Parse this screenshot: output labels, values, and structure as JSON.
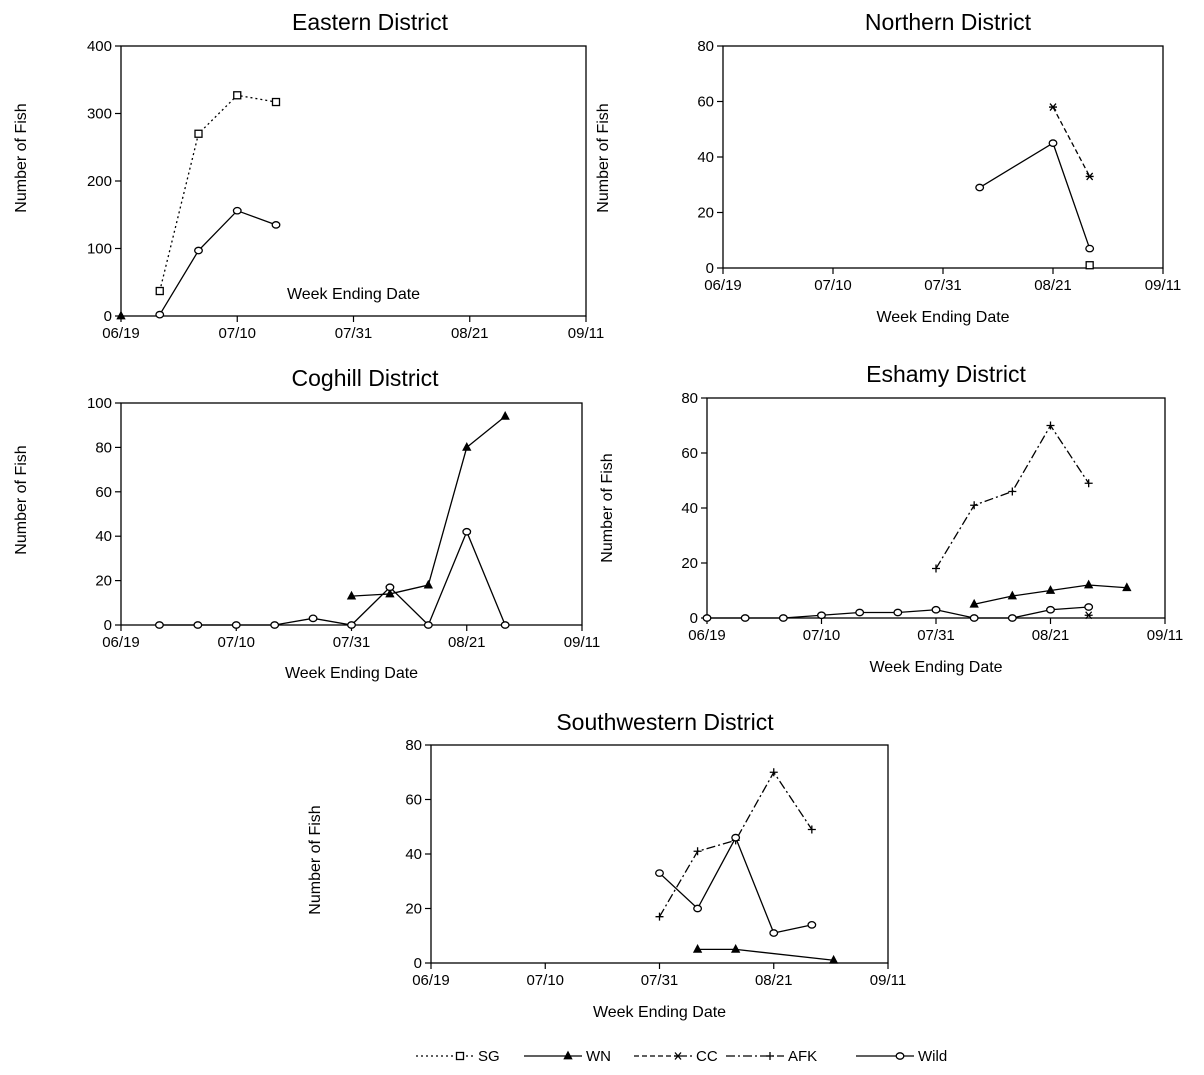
{
  "chart_data": [
    {
      "type": "line",
      "title": "Eastern District",
      "xlabel": "Week Ending Date",
      "ylabel": "Number of Fish",
      "ylim": [
        0,
        400
      ],
      "yticks": [
        "0",
        "100",
        "200",
        "300",
        "400"
      ],
      "xticks": [
        "06/19",
        "07/10",
        "07/31",
        "08/21",
        "09/11"
      ],
      "series": [
        {
          "name": "SG",
          "points": [
            [
              "06/26",
              37
            ],
            [
              "07/03",
              270
            ],
            [
              "07/10",
              327
            ],
            [
              "07/17",
              317
            ]
          ]
        },
        {
          "name": "WN",
          "points": [
            [
              "06/19",
              0
            ]
          ]
        },
        {
          "name": "Wild",
          "points": [
            [
              "06/26",
              2
            ],
            [
              "07/03",
              97
            ],
            [
              "07/10",
              156
            ],
            [
              "07/17",
              135
            ]
          ]
        }
      ]
    },
    {
      "type": "line",
      "title": "Northern District",
      "xlabel": "Week Ending Date",
      "ylabel": "Number of Fish",
      "ylim": [
        0,
        80
      ],
      "yticks": [
        "0",
        "20",
        "40",
        "60",
        "80"
      ],
      "xticks": [
        "06/19",
        "07/10",
        "07/31",
        "08/21",
        "09/11"
      ],
      "series": [
        {
          "name": "SG",
          "points": [
            [
              "08/28",
              1
            ]
          ]
        },
        {
          "name": "CC",
          "points": [
            [
              "08/21",
              58
            ],
            [
              "08/28",
              33
            ]
          ]
        },
        {
          "name": "Wild",
          "points": [
            [
              "08/07",
              29
            ],
            [
              "08/21",
              45
            ],
            [
              "08/28",
              7
            ]
          ]
        }
      ]
    },
    {
      "type": "line",
      "title": "Coghill District",
      "xlabel": "Week Ending Date",
      "ylabel": "Number of Fish",
      "ylim": [
        0,
        100
      ],
      "yticks": [
        "0",
        "20",
        "40",
        "60",
        "80",
        "100"
      ],
      "xticks": [
        "06/19",
        "07/10",
        "07/31",
        "08/21",
        "09/11"
      ],
      "series": [
        {
          "name": "WN",
          "points": [
            [
              "07/31",
              13
            ],
            [
              "08/07",
              14
            ],
            [
              "08/14",
              18
            ],
            [
              "08/21",
              80
            ],
            [
              "08/28",
              94
            ]
          ]
        },
        {
          "name": "Wild",
          "points": [
            [
              "06/26",
              0
            ],
            [
              "07/03",
              0
            ],
            [
              "07/10",
              0
            ],
            [
              "07/17",
              0
            ],
            [
              "07/24",
              3
            ],
            [
              "07/31",
              0
            ],
            [
              "08/07",
              17
            ],
            [
              "08/14",
              0
            ],
            [
              "08/21",
              42
            ],
            [
              "08/28",
              0
            ]
          ]
        }
      ]
    },
    {
      "type": "line",
      "title": "Eshamy District",
      "xlabel": "Week Ending Date",
      "ylabel": "Number of Fish",
      "ylim": [
        0,
        80
      ],
      "yticks": [
        "0",
        "20",
        "40",
        "60",
        "80"
      ],
      "xticks": [
        "06/19",
        "07/10",
        "07/31",
        "08/21",
        "09/11"
      ],
      "series": [
        {
          "name": "WN",
          "points": [
            [
              "08/07",
              5
            ],
            [
              "08/14",
              8
            ],
            [
              "08/21",
              10
            ],
            [
              "08/28",
              12
            ],
            [
              "09/04",
              11
            ]
          ]
        },
        {
          "name": "CC",
          "points": [
            [
              "08/28",
              1
            ]
          ]
        },
        {
          "name": "AFK",
          "points": [
            [
              "07/31",
              18
            ],
            [
              "08/07",
              41
            ],
            [
              "08/14",
              46
            ],
            [
              "08/21",
              70
            ],
            [
              "08/28",
              49
            ]
          ]
        },
        {
          "name": "Wild",
          "points": [
            [
              "06/19",
              0
            ],
            [
              "06/26",
              0
            ],
            [
              "07/03",
              0
            ],
            [
              "07/10",
              1
            ],
            [
              "07/17",
              2
            ],
            [
              "07/24",
              2
            ],
            [
              "07/31",
              3
            ],
            [
              "08/07",
              0
            ],
            [
              "08/14",
              0
            ],
            [
              "08/21",
              3
            ],
            [
              "08/28",
              4
            ]
          ]
        }
      ]
    },
    {
      "type": "line",
      "title": "Southwestern District",
      "xlabel": "Week Ending Date",
      "ylabel": "Number of Fish",
      "ylim": [
        0,
        80
      ],
      "yticks": [
        "0",
        "20",
        "40",
        "60",
        "80"
      ],
      "xticks": [
        "06/19",
        "07/10",
        "07/31",
        "08/21",
        "09/11"
      ],
      "series": [
        {
          "name": "WN",
          "points": [
            [
              "08/07",
              5
            ],
            [
              "08/14",
              5
            ],
            [
              "09/01",
              1
            ]
          ]
        },
        {
          "name": "AFK",
          "points": [
            [
              "07/31",
              17
            ],
            [
              "08/07",
              41
            ],
            [
              "08/14",
              45
            ],
            [
              "08/21",
              70
            ],
            [
              "08/28",
              49
            ]
          ]
        },
        {
          "name": "Wild",
          "points": [
            [
              "07/31",
              33
            ],
            [
              "08/07",
              20
            ],
            [
              "08/14",
              46
            ],
            [
              "08/21",
              11
            ],
            [
              "08/28",
              14
            ]
          ]
        }
      ]
    }
  ],
  "legend": {
    "placement": "bottom-center",
    "entries": [
      {
        "key": "SG",
        "label": "SG"
      },
      {
        "key": "WN",
        "label": "WN"
      },
      {
        "key": "CC",
        "label": "CC"
      },
      {
        "key": "AFK",
        "label": "AFK"
      },
      {
        "key": "Wild",
        "label": "Wild"
      }
    ]
  }
}
